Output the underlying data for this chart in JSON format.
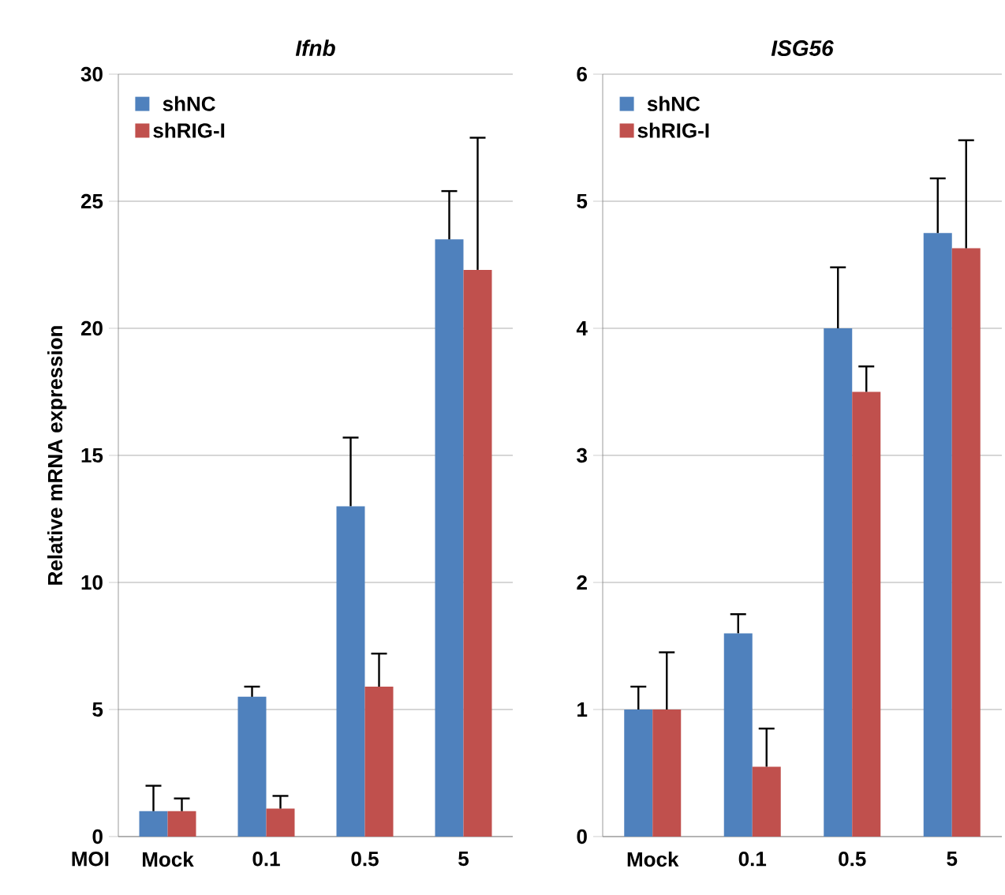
{
  "chart_data": [
    {
      "type": "bar",
      "title": "Ifnb",
      "ylabel": "Relative mRNA expression",
      "xlabel": "MOI",
      "categories": [
        "Mock",
        "0.1",
        "0.5",
        "5"
      ],
      "series": [
        {
          "name": "shNC",
          "color": "#4f81bd",
          "values": [
            1.0,
            5.5,
            13.0,
            23.5
          ],
          "errors": [
            [
              1.0,
              2.0
            ],
            [
              5.5,
              5.9
            ],
            [
              13.0,
              15.7
            ],
            [
              23.5,
              25.4
            ]
          ]
        },
        {
          "name": "shRIG-I",
          "color": "#c0504d",
          "values": [
            1.0,
            1.1,
            5.9,
            22.3
          ],
          "errors": [
            [
              1.0,
              1.5
            ],
            [
              1.1,
              1.6
            ],
            [
              5.9,
              7.2
            ],
            [
              22.3,
              27.5
            ]
          ]
        }
      ],
      "ylim": [
        0,
        30
      ],
      "yticks": [
        0,
        5,
        10,
        15,
        20,
        25,
        30
      ],
      "grid": "y",
      "legend": "top left"
    },
    {
      "type": "bar",
      "title": "ISG56",
      "categories": [
        "Mock",
        "0.1",
        "0.5",
        "5"
      ],
      "series": [
        {
          "name": "shNC",
          "color": "#4f81bd",
          "values": [
            1.0,
            1.6,
            4.0,
            4.75
          ],
          "errors": [
            [
              1.0,
              1.18
            ],
            [
              1.6,
              1.75
            ],
            [
              4.0,
              4.48
            ],
            [
              4.75,
              5.18
            ]
          ]
        },
        {
          "name": "shRIG-I",
          "color": "#c0504d",
          "values": [
            1.0,
            0.55,
            3.5,
            4.63
          ],
          "errors": [
            [
              1.0,
              1.45
            ],
            [
              0.55,
              0.85
            ],
            [
              3.5,
              3.7
            ],
            [
              4.63,
              5.48
            ]
          ]
        }
      ],
      "ylim": [
        0,
        6
      ],
      "yticks": [
        0,
        1,
        2,
        3,
        4,
        5,
        6
      ],
      "grid": "y",
      "legend": "top left"
    }
  ]
}
